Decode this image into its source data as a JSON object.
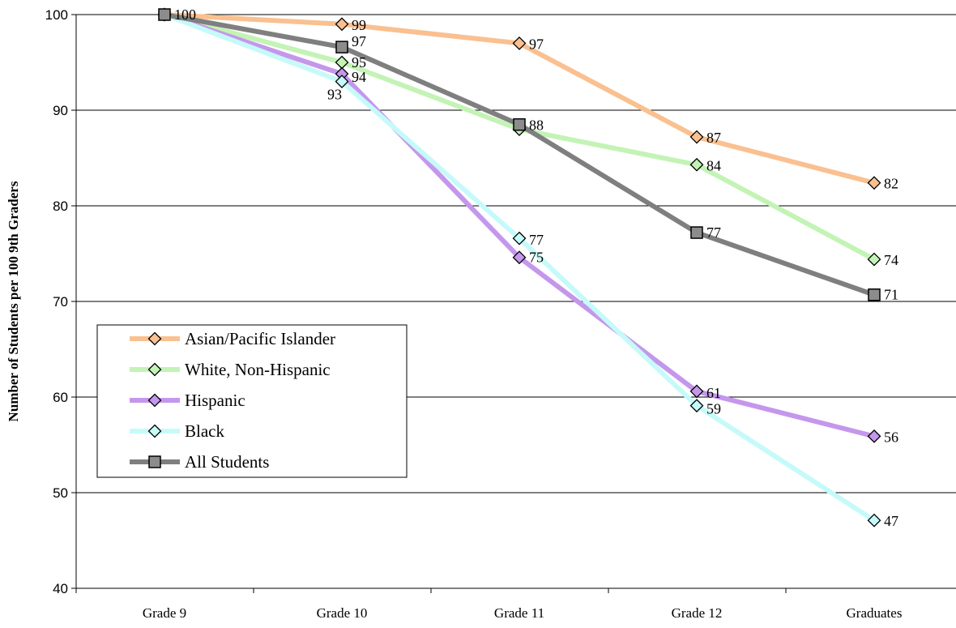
{
  "chart_data": {
    "type": "line",
    "title": "",
    "xlabel": "",
    "ylabel": "Number of Students per 100 9th Graders",
    "ylim": [
      40,
      100
    ],
    "yticks": [
      40,
      50,
      60,
      70,
      80,
      90,
      100
    ],
    "grid": true,
    "legend_position": "center-left",
    "categories": [
      "Grade 9",
      "Grade 10",
      "Grade 11",
      "Grade 12",
      "Graduates"
    ],
    "series": [
      {
        "name": "Asian/Pacific Islander",
        "values": [
          100,
          99,
          97,
          87.2,
          82.4
        ],
        "labels": [
          "",
          "99",
          "97",
          "87",
          "82"
        ],
        "color": "#FAC090",
        "marker": "diamond",
        "marker_fill": "#FAC090"
      },
      {
        "name": "White, Non-Hispanic",
        "values": [
          100,
          95,
          88,
          84.3,
          74.4
        ],
        "labels": [
          "",
          "95",
          "",
          "84",
          "74"
        ],
        "color": "#C3F3B5",
        "marker": "diamond",
        "marker_fill": "#C3F3B5"
      },
      {
        "name": "Hispanic",
        "values": [
          100,
          93.8,
          74.6,
          60.6,
          55.9
        ],
        "labels": [
          "",
          "94",
          "75",
          "61",
          "56"
        ],
        "color": "#C497EC",
        "marker": "diamond",
        "marker_fill": "#C497EC"
      },
      {
        "name": "Black",
        "values": [
          100,
          93,
          76.6,
          59.1,
          47.1
        ],
        "labels": [
          "",
          "93",
          "77",
          "59",
          "47"
        ],
        "color": "#C6FAFA",
        "marker": "diamond",
        "marker_fill": "#C6FAFA"
      },
      {
        "name": "All Students",
        "values": [
          100,
          96.6,
          88.5,
          77.2,
          70.7
        ],
        "labels": [
          "100",
          "97",
          "88",
          "77",
          "71"
        ],
        "color": "#7F7F7F",
        "marker": "square",
        "marker_fill": "#8C8C8C"
      }
    ]
  }
}
